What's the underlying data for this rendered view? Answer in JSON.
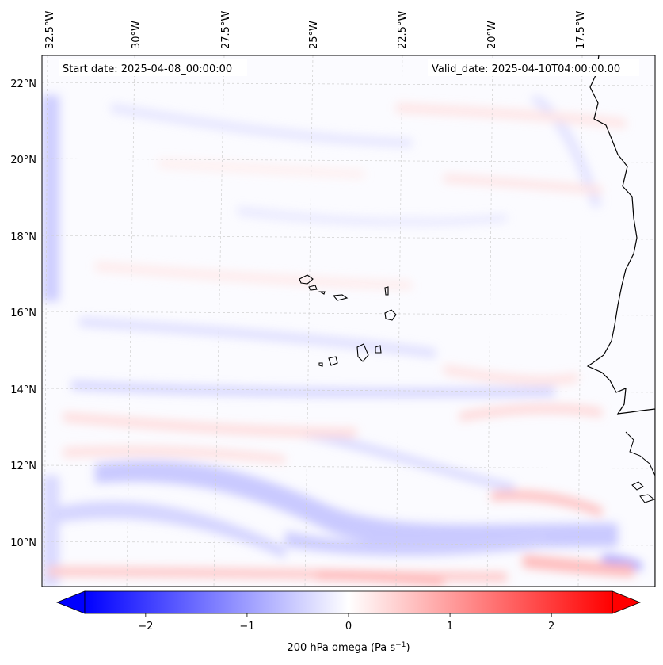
{
  "map": {
    "start_date": "Start date: 2025-04-08_00:00:00",
    "valid_date": "Valid_date: 2025-04-10T04:00:00.00",
    "lon_labels": [
      "32.5°W",
      "30°W",
      "27.5°W",
      "25°W",
      "22.5°W",
      "20°W",
      "17.5°W"
    ],
    "lat_labels": [
      "22°N",
      "20°N",
      "18°N",
      "16°N",
      "14°N",
      "12°N",
      "10°N"
    ],
    "variable": "200 hPa omega",
    "colormap": "bwr",
    "colorbar": {
      "label_prefix": "200 hPa omega (Pa s",
      "label_exponent": "−1",
      "label_suffix": ")",
      "range": [
        -2.6,
        2.6
      ],
      "ticks": [
        {
          "value": -2,
          "label": "−2"
        },
        {
          "value": -1,
          "label": "−1"
        },
        {
          "value": 0,
          "label": "0"
        },
        {
          "value": 1,
          "label": "1"
        },
        {
          "value": 2,
          "label": "2"
        }
      ],
      "color_min": "#0000ff",
      "color_mid": "#ffffff",
      "color_max": "#ff0000"
    }
  }
}
